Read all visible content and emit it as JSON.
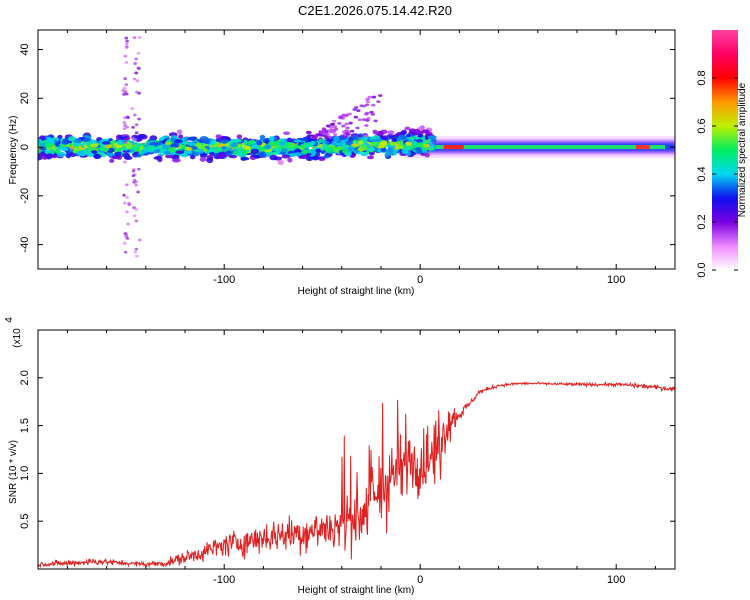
{
  "title": "C2E1.2026.075.14.42.R20",
  "chart_data": [
    {
      "type": "heatmap",
      "name": "spectrogram",
      "xlabel": "Height of straight line (km)",
      "ylabel": "Frequency (Hz)",
      "xlim": [
        -195,
        130
      ],
      "ylim": [
        -50,
        48
      ],
      "xticks": [
        -100,
        0,
        100
      ],
      "xtick_labels": [
        "-100",
        "0",
        "100"
      ],
      "yticks": [
        -40,
        -20,
        0,
        20,
        40
      ],
      "ytick_labels": [
        "-40",
        "-20",
        "0",
        "20",
        "40"
      ],
      "background_band": {
        "x": [
          -195,
          130
        ],
        "freq_center": 0,
        "spread_hz": 8
      },
      "bright_ridge": {
        "x": [
          -8,
          130
        ],
        "freq_hz": 0
      },
      "outlier_column_x": [
        -150,
        -145
      ],
      "colorbar": {
        "label": "Normalized spectral amplitude",
        "range": [
          0.0,
          1.0
        ],
        "ticks": [
          0.0,
          0.2,
          0.4,
          0.6,
          0.8
        ],
        "tick_labels": [
          "0.0",
          "0.2",
          "0.4",
          "0.6",
          "0.8"
        ],
        "colors": [
          "#ffffff",
          "#ee88ff",
          "#7a00e0",
          "#1010f0",
          "#00d8f0",
          "#00ee60",
          "#bff000",
          "#ff9900",
          "#ff0000",
          "#ff0066",
          "#ff40a0"
        ]
      }
    },
    {
      "type": "line",
      "name": "snr",
      "xlabel": "Height of straight line (km)",
      "ylabel": "SNR (10 * v/v)",
      "scale_label": "(x10",
      "scale_exponent": "4",
      "xlim": [
        -195,
        130
      ],
      "ylim": [
        0,
        2.5
      ],
      "xticks": [
        -100,
        0,
        100
      ],
      "xtick_labels": [
        "-100",
        "0",
        "100"
      ],
      "yticks": [
        0.5,
        1.0,
        1.5,
        2.0
      ],
      "ytick_labels": [
        "0.5",
        "1.0",
        "1.5",
        "2.0"
      ],
      "color": "#e02020",
      "x": [
        -195,
        -180,
        -165,
        -150,
        -140,
        -130,
        -120,
        -110,
        -100,
        -90,
        -80,
        -70,
        -60,
        -50,
        -40,
        -35,
        -30,
        -25,
        -20,
        -15,
        -10,
        -5,
        0,
        5,
        8,
        10,
        12,
        15,
        20,
        25,
        30,
        40,
        50,
        60,
        80,
        100,
        110,
        120,
        130
      ],
      "y": [
        0.05,
        0.06,
        0.08,
        0.06,
        0.05,
        0.06,
        0.12,
        0.18,
        0.25,
        0.28,
        0.33,
        0.36,
        0.38,
        0.42,
        0.45,
        0.52,
        0.6,
        0.68,
        0.8,
        0.95,
        1.05,
        1.12,
        1.08,
        1.15,
        1.25,
        1.35,
        1.45,
        1.55,
        1.62,
        1.72,
        1.85,
        1.92,
        1.94,
        1.94,
        1.93,
        1.93,
        1.92,
        1.9,
        1.88
      ],
      "noise": [
        0.03,
        0.04,
        0.05,
        0.03,
        0.03,
        0.05,
        0.08,
        0.12,
        0.15,
        0.18,
        0.2,
        0.22,
        0.25,
        0.28,
        0.32,
        0.4,
        0.5,
        0.55,
        0.6,
        0.55,
        0.4,
        0.35,
        0.38,
        0.45,
        0.5,
        0.5,
        0.35,
        0.25,
        0.1,
        0.04,
        0.03,
        0.02,
        0.015,
        0.015,
        0.02,
        0.02,
        0.03,
        0.03,
        0.03
      ]
    }
  ]
}
